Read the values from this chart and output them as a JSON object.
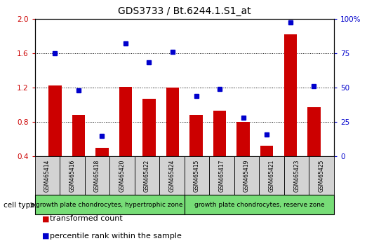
{
  "title": "GDS3733 / Bt.6244.1.S1_at",
  "samples": [
    "GSM465414",
    "GSM465416",
    "GSM465418",
    "GSM465420",
    "GSM465422",
    "GSM465424",
    "GSM465415",
    "GSM465417",
    "GSM465419",
    "GSM465421",
    "GSM465423",
    "GSM465425"
  ],
  "transformed_count": [
    1.22,
    0.88,
    0.5,
    1.21,
    1.07,
    1.2,
    0.88,
    0.93,
    0.8,
    0.52,
    1.82,
    0.97
  ],
  "percentile_rank": [
    75,
    48,
    15,
    82,
    68,
    76,
    44,
    49,
    28,
    16,
    97,
    51
  ],
  "bar_color": "#cc0000",
  "dot_color": "#0000cc",
  "ylim_left": [
    0.4,
    2.0
  ],
  "ylim_right": [
    0,
    100
  ],
  "yticks_left": [
    0.4,
    0.8,
    1.2,
    1.6,
    2.0
  ],
  "yticks_right": [
    0,
    25,
    50,
    75,
    100
  ],
  "group1_label": "growth plate chondrocytes, hypertrophic zone",
  "group2_label": "growth plate chondrocytes, reserve zone",
  "group1_count": 6,
  "group2_count": 6,
  "cell_type_label": "cell type",
  "legend_bar_label": "transformed count",
  "legend_dot_label": "percentile rank within the sample",
  "group_bg_color": "#77dd77",
  "sample_bg_color": "#d3d3d3",
  "title_fontsize": 10,
  "tick_fontsize": 7.5,
  "label_fontsize": 7,
  "legend_fontsize": 8
}
